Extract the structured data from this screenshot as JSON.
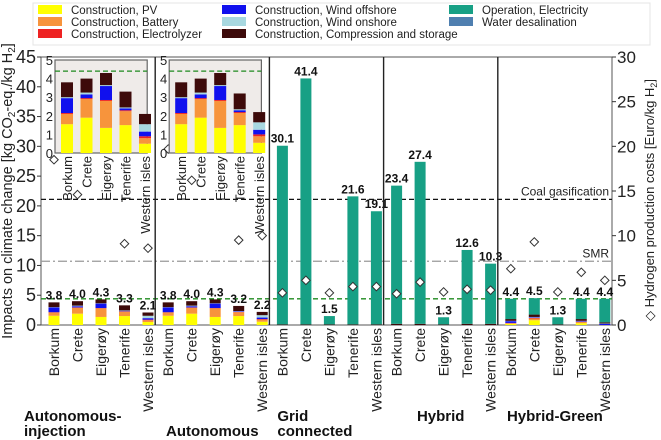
{
  "chart_data": {
    "type": "bar",
    "stacked": true,
    "ylabel": "Impacts on climate change [kg CO2-eq./kg H2]",
    "ylabel_parts": {
      "a": "Impacts on climate change [kg CO",
      "b": "2",
      "c": "-eq./kg H",
      "d": "2",
      "e": "]"
    },
    "y2label_parts": {
      "a": "Hydrogen production costs [Euro/kg H",
      "b": "2",
      "c": "]"
    },
    "ylim": [
      0,
      45
    ],
    "yticks": [
      0,
      5,
      10,
      15,
      20,
      25,
      30,
      35,
      40,
      45
    ],
    "y2lim": [
      0,
      30
    ],
    "y2ticks": [
      0,
      5,
      10,
      15,
      20,
      25,
      30
    ],
    "inset_ylim": [
      0,
      5
    ],
    "inset_yticks": [
      0,
      1,
      2,
      3,
      4,
      5
    ],
    "legend_position": "top",
    "components": [
      {
        "name": "Construction, PV",
        "color": "#ffff00"
      },
      {
        "name": "Construction, Battery",
        "color": "#f7943c"
      },
      {
        "name": "Construction, Electrolyzer",
        "color": "#ee2222"
      },
      {
        "name": "Construction, Wind offshore",
        "color": "#1010ee"
      },
      {
        "name": "Construction, Wind onshore",
        "color": "#a8d8e0"
      },
      {
        "name": "Construction, Compression and storage",
        "color": "#3d0a0a"
      },
      {
        "name": "Operation, Electricity",
        "color": "#17a085"
      },
      {
        "name": "Water desalination",
        "color": "#4f7fb0"
      }
    ],
    "reference_lines": [
      {
        "label": "Coal gasification",
        "value": 21.1,
        "style": "black-dashed"
      },
      {
        "label": "SMR",
        "value": 10.7,
        "style": "gray-dashdot"
      },
      {
        "label": "",
        "value": 4.4,
        "style": "green-dashed"
      }
    ],
    "groups": [
      {
        "name": "Autonomous-\ninjection",
        "lines": [
          "Autonomous-",
          "injection"
        ],
        "inset": true,
        "sites": [
          {
            "site": "Borkum",
            "total": 3.8,
            "label": "3.8",
            "parts": [
              1.55,
              0.55,
              0.05,
              0.8,
              0.05,
              0.8,
              0,
              0
            ],
            "cost": 18.5
          },
          {
            "site": "Crete",
            "total": 4.0,
            "label": "4.0",
            "parts": [
              1.9,
              1.0,
              0.05,
              0.2,
              0.1,
              0.75,
              0,
              0
            ],
            "cost": 14.6
          },
          {
            "site": "Eigerøy",
            "total": 4.3,
            "label": "4.3",
            "parts": [
              1.35,
              1.45,
              0.05,
              0.75,
              0.05,
              0.65,
              0,
              0
            ],
            "cost": null
          },
          {
            "site": "Tenerife",
            "total": 3.3,
            "label": "3.3",
            "parts": [
              1.5,
              0.75,
              0.05,
              0.1,
              0.05,
              0.85,
              0,
              0
            ],
            "cost": 9.1
          },
          {
            "site": "Western isles",
            "total": 2.1,
            "label": "2.1",
            "parts": [
              0.5,
              0.3,
              0.1,
              0.25,
              0.4,
              0.55,
              0,
              0
            ],
            "cost": 8.6
          }
        ]
      },
      {
        "name": "Autonomous",
        "lines": [
          "Autonomous"
        ],
        "inset": true,
        "sites": [
          {
            "site": "Borkum",
            "total": 3.8,
            "label": "3.8",
            "parts": [
              1.55,
              0.55,
              0.05,
              0.8,
              0.05,
              0.8,
              0,
              0
            ],
            "cost": 19.7
          },
          {
            "site": "Crete",
            "total": 4.0,
            "label": "4.0",
            "parts": [
              1.9,
              1.0,
              0.05,
              0.2,
              0.1,
              0.75,
              0,
              0
            ],
            "cost": 16.2
          },
          {
            "site": "Eigerøy",
            "total": 4.3,
            "label": "4.3",
            "parts": [
              1.35,
              1.45,
              0.05,
              0.75,
              0.05,
              0.65,
              0,
              0
            ],
            "cost": null
          },
          {
            "site": "Tenerife",
            "total": 3.2,
            "label": "3.2",
            "parts": [
              1.5,
              0.65,
              0.05,
              0.1,
              0.05,
              0.85,
              0,
              0
            ],
            "cost": 9.5
          },
          {
            "site": "Western isles",
            "total": 2.2,
            "label": "2.2",
            "parts": [
              0.55,
              0.35,
              0.1,
              0.25,
              0.4,
              0.55,
              0,
              0
            ],
            "cost": 10.0
          }
        ]
      },
      {
        "name": "Grid connected",
        "lines": [
          "Grid",
          "connected"
        ],
        "inset": false,
        "sites": [
          {
            "site": "Borkum",
            "total": 30.1,
            "label": "30.1",
            "parts": [
              0,
              0,
              0,
              0,
              0,
              0.1,
              30.0,
              0
            ],
            "cost": 3.6
          },
          {
            "site": "Crete",
            "total": 41.4,
            "label": "41.4",
            "parts": [
              0,
              0,
              0,
              0,
              0,
              0.1,
              41.3,
              0
            ],
            "cost": 5.0
          },
          {
            "site": "Eigerøy",
            "total": 1.5,
            "label": "1.5",
            "parts": [
              0,
              0,
              0,
              0,
              0,
              0.1,
              1.4,
              0
            ],
            "cost": 3.6
          },
          {
            "site": "Tenerife",
            "total": 21.6,
            "label": "21.6",
            "parts": [
              0,
              0,
              0,
              0,
              0,
              0.1,
              21.5,
              0
            ],
            "cost": 4.3
          },
          {
            "site": "Western isles",
            "total": 19.1,
            "label": "19.1",
            "parts": [
              0,
              0,
              0,
              0,
              0,
              0.1,
              19.0,
              0
            ],
            "cost": 4.3
          }
        ]
      },
      {
        "name": "Hybrid",
        "lines": [
          "Hybrid"
        ],
        "inset": false,
        "sites": [
          {
            "site": "Borkum",
            "total": 23.4,
            "label": "23.4",
            "parts": [
              0,
              0,
              0,
              0,
              0,
              0.2,
              23.2,
              0
            ],
            "cost": 3.5
          },
          {
            "site": "Crete",
            "total": 27.4,
            "label": "27.4",
            "parts": [
              0,
              0,
              0,
              0,
              0,
              0.2,
              27.2,
              0
            ],
            "cost": 4.8
          },
          {
            "site": "Eigerøy",
            "total": 1.3,
            "label": "1.3",
            "parts": [
              0,
              0,
              0,
              0,
              0,
              0.1,
              1.2,
              0
            ],
            "cost": 3.7
          },
          {
            "site": "Tenerife",
            "total": 12.6,
            "label": "12.6",
            "parts": [
              0,
              0,
              0,
              0,
              0,
              0.2,
              12.4,
              0
            ],
            "cost": 4.0
          },
          {
            "site": "Western isles",
            "total": 10.3,
            "label": "10.3",
            "parts": [
              0,
              0,
              0,
              0,
              0,
              0.2,
              10.1,
              0
            ],
            "cost": 3.9
          }
        ]
      },
      {
        "name": "Hybrid-Green",
        "lines": [
          "Hybrid-Green"
        ],
        "inset": false,
        "sites": [
          {
            "site": "Borkum",
            "total": 4.4,
            "label": "4.4",
            "parts": [
              0.2,
              0.1,
              0.05,
              0.3,
              0.05,
              0.3,
              3.4,
              0
            ],
            "cost": 6.3
          },
          {
            "site": "Crete",
            "total": 4.5,
            "label": "4.5",
            "parts": [
              0.8,
              0.3,
              0.1,
              0.1,
              0.05,
              0.4,
              2.75,
              0
            ],
            "cost": 9.3
          },
          {
            "site": "Eigerøy",
            "total": 1.3,
            "label": "1.3",
            "parts": [
              0,
              0,
              0,
              0,
              0,
              0.1,
              1.2,
              0
            ],
            "cost": 3.7
          },
          {
            "site": "Tenerife",
            "total": 4.4,
            "label": "4.4",
            "parts": [
              0.3,
              0.2,
              0.05,
              0.1,
              0.05,
              0.3,
              3.4,
              0
            ],
            "cost": 5.9
          },
          {
            "site": "Western isles",
            "total": 4.4,
            "label": "4.4",
            "parts": [
              0,
              0,
              0,
              0.2,
              0.05,
              0.2,
              3.95,
              0
            ],
            "cost": 5.0
          }
        ]
      }
    ]
  }
}
